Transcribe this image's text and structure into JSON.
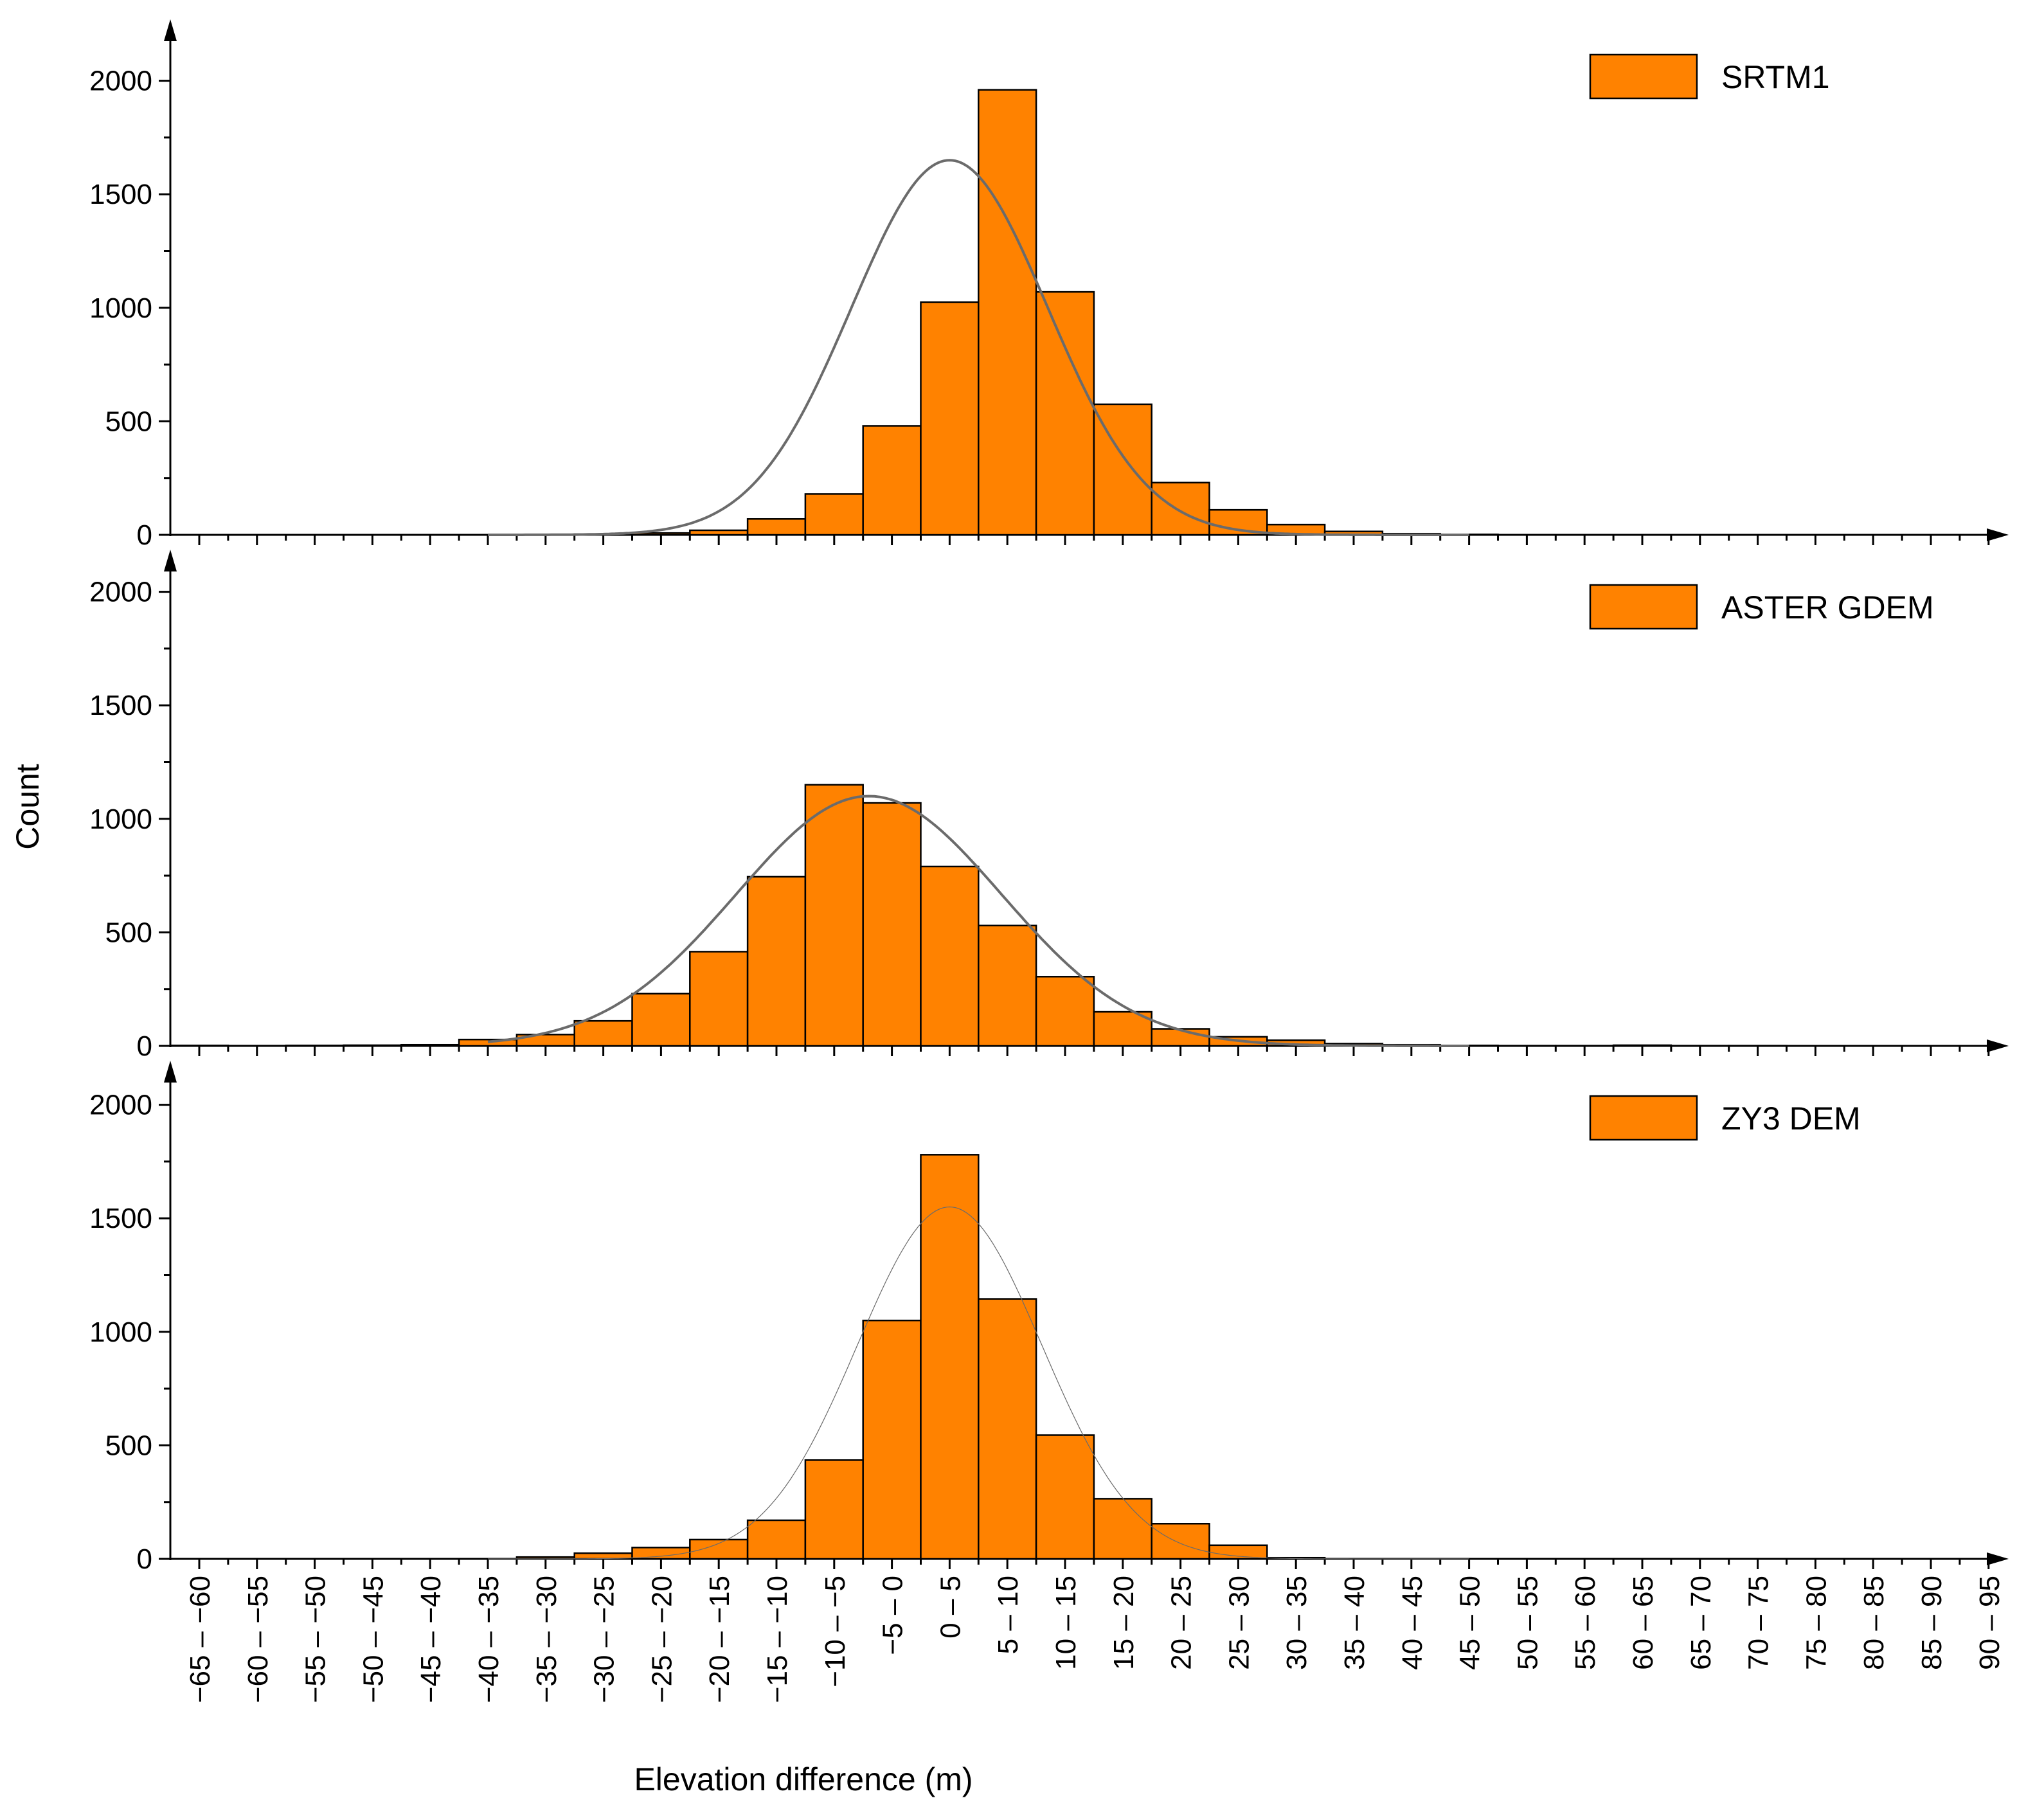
{
  "chart_data": {
    "type": "bar",
    "layout": "stacked-panels",
    "shared_x": true,
    "xlabel": "Elevation difference (m)",
    "ylabel": "Count",
    "ylim": [
      0,
      2200
    ],
    "yticks": [
      0,
      500,
      1000,
      1500,
      2000
    ],
    "categories": [
      "−65 – −60",
      "−60 – −55",
      "−55 – −50",
      "−50 – −45",
      "−45 – −40",
      "−40 – −35",
      "−35 – −30",
      "−30 – −25",
      "−25 – −20",
      "−20 – −15",
      "−15 – −10",
      "−10 – −5",
      "−5 – 0",
      "0 – 5",
      "5 – 10",
      "10 – 15",
      "15 – 20",
      "20 – 25",
      "25 – 30",
      "30 – 35",
      "35 – 40",
      "40 – 45",
      "45 – 50",
      "50 – 55",
      "55 – 60",
      "60 – 65",
      "65 – 70",
      "70 – 75",
      "75 – 80",
      "80 – 85",
      "85 – 90",
      "90 – 95"
    ],
    "panels": [
      {
        "name": "SRTM1",
        "values": [
          0,
          0,
          0,
          0,
          0,
          0,
          0,
          3,
          8,
          20,
          70,
          180,
          480,
          1025,
          1960,
          1070,
          575,
          230,
          110,
          45,
          15,
          5,
          2,
          0,
          0,
          0,
          0,
          0,
          0,
          0,
          0,
          0
        ],
        "fit_curve": {
          "type": "normal",
          "peak": 1650,
          "center": 0,
          "sigma": 8.5,
          "line_width": 4
        }
      },
      {
        "name": "ASTER GDEM",
        "values": [
          2,
          1,
          2,
          3,
          5,
          28,
          50,
          110,
          230,
          415,
          745,
          1150,
          1070,
          790,
          530,
          305,
          150,
          75,
          40,
          25,
          10,
          5,
          2,
          1,
          1,
          3,
          1,
          1,
          0,
          0,
          0,
          0
        ],
        "fit_curve": {
          "type": "normal",
          "peak": 1100,
          "center": -7,
          "sigma": 11.5,
          "line_width": 4
        }
      },
      {
        "name": "ZY3 DEM",
        "values": [
          0,
          0,
          0,
          0,
          0,
          0,
          8,
          25,
          50,
          85,
          170,
          435,
          1050,
          1780,
          1145,
          545,
          265,
          155,
          60,
          5,
          0,
          0,
          0,
          0,
          0,
          0,
          0,
          0,
          0,
          0,
          0,
          0
        ],
        "fit_curve": {
          "type": "normal",
          "peak": 1550,
          "center": 0,
          "sigma": 8,
          "line_width": 1.2
        }
      }
    ]
  },
  "colors": {
    "bar_fill": "#ff8200",
    "bar_stroke": "#000000",
    "curve": "#6b6b6b"
  }
}
